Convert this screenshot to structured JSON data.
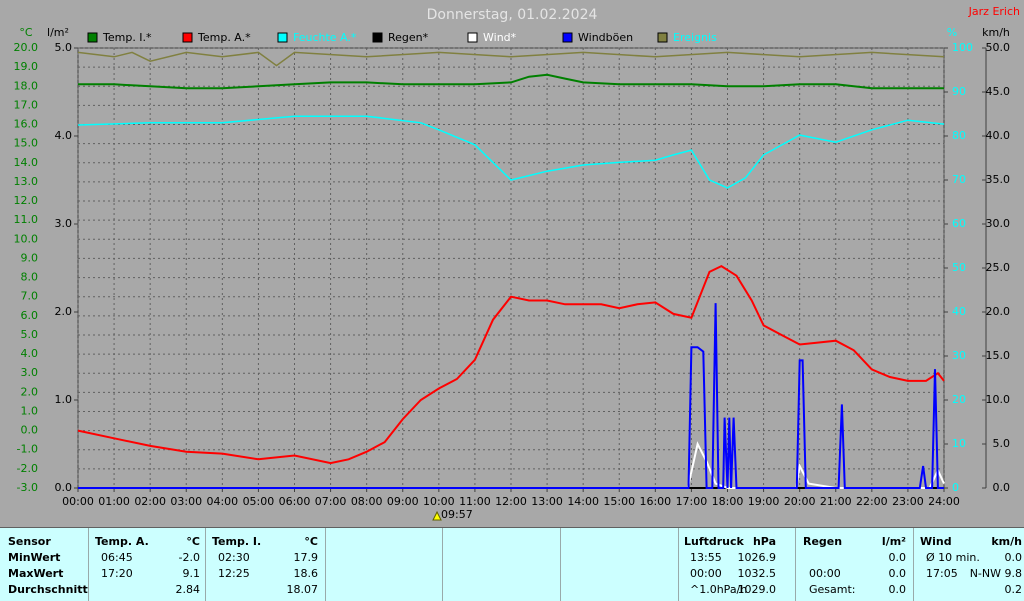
{
  "chart_data": {
    "type": "line",
    "title": "Donnerstag, 01.02.2024",
    "station": "Jarz Erich",
    "y_label": "°C",
    "rain_label": "l/m²",
    "y2_label": "%",
    "y3_label": "km/h",
    "xlim": [
      0,
      24
    ],
    "xticks": [
      {
        "value": 0,
        "label": "00:00"
      },
      {
        "value": 1,
        "label": "01:00"
      },
      {
        "value": 2,
        "label": "02:00"
      },
      {
        "value": 3,
        "label": "03:00"
      },
      {
        "value": 4,
        "label": "04:00"
      },
      {
        "value": 5,
        "label": "05:00"
      },
      {
        "value": 6,
        "label": "06:00"
      },
      {
        "value": 7,
        "label": "07:00"
      },
      {
        "value": 8,
        "label": "08:00"
      },
      {
        "value": 9,
        "label": "09:00"
      },
      {
        "value": 10,
        "label": "10:00"
      },
      {
        "value": 11,
        "label": "11:00"
      },
      {
        "value": 12,
        "label": "12:00"
      },
      {
        "value": 13,
        "label": "13:00"
      },
      {
        "value": 14,
        "label": "14:00"
      },
      {
        "value": 15,
        "label": "15:00"
      },
      {
        "value": 16,
        "label": "16:00"
      },
      {
        "value": 17,
        "label": "17:00"
      },
      {
        "value": 18,
        "label": "18:00"
      },
      {
        "value": 19,
        "label": "19:00"
      },
      {
        "value": 20,
        "label": "20:00"
      },
      {
        "value": 21,
        "label": "21:00"
      },
      {
        "value": 22,
        "label": "22:00"
      },
      {
        "value": 23,
        "label": "23:00"
      },
      {
        "value": 24,
        "label": "24:00"
      }
    ],
    "ylim": [
      -3,
      20
    ],
    "yticks": [
      {
        "value": -3,
        "label": "-3.0"
      },
      {
        "value": -2,
        "label": "-2.0"
      },
      {
        "value": -1,
        "label": "-1.0"
      },
      {
        "value": 0,
        "label": "0.0"
      },
      {
        "value": 1,
        "label": "1.0"
      },
      {
        "value": 2,
        "label": "2.0"
      },
      {
        "value": 3,
        "label": "3.0"
      },
      {
        "value": 4,
        "label": "4.0"
      },
      {
        "value": 5,
        "label": "5.0"
      },
      {
        "value": 6,
        "label": "6.0"
      },
      {
        "value": 7,
        "label": "7.0"
      },
      {
        "value": 8,
        "label": "8.0"
      },
      {
        "value": 9,
        "label": "9.0"
      },
      {
        "value": 10,
        "label": "10.0"
      },
      {
        "value": 11,
        "label": "11.0"
      },
      {
        "value": 12,
        "label": "12.0"
      },
      {
        "value": 13,
        "label": "13.0"
      },
      {
        "value": 14,
        "label": "14.0"
      },
      {
        "value": 15,
        "label": "15.0"
      },
      {
        "value": 16,
        "label": "16.0"
      },
      {
        "value": 17,
        "label": "17.0"
      },
      {
        "value": 18,
        "label": "18.0"
      },
      {
        "value": 19,
        "label": "19.0"
      },
      {
        "value": 20,
        "label": "20.0"
      }
    ],
    "rainlim": [
      0,
      5
    ],
    "rainticks": [
      {
        "value": 0,
        "label": "0.0"
      },
      {
        "value": 1,
        "label": "1.0"
      },
      {
        "value": 2,
        "label": "2.0"
      },
      {
        "value": 3,
        "label": "3.0"
      },
      {
        "value": 4,
        "label": "4.0"
      },
      {
        "value": 5,
        "label": "5.0"
      }
    ],
    "y2lim": [
      0,
      100
    ],
    "y2ticks": [
      0,
      10,
      20,
      30,
      40,
      50,
      60,
      70,
      80,
      90,
      100
    ],
    "y3lim": [
      0,
      50
    ],
    "y3ticks": [
      {
        "value": 0,
        "label": "0.0"
      },
      {
        "value": 5,
        "label": "5.0"
      },
      {
        "value": 10,
        "label": "10.0"
      },
      {
        "value": 15,
        "label": "15.0"
      },
      {
        "value": 20,
        "label": "20.0"
      },
      {
        "value": 25,
        "label": "25.0"
      },
      {
        "value": 30,
        "label": "30.0"
      },
      {
        "value": 35,
        "label": "35.0"
      },
      {
        "value": 40,
        "label": "40.0"
      },
      {
        "value": 45,
        "label": "45.0"
      },
      {
        "value": 50,
        "label": "50.0"
      }
    ],
    "grid": true,
    "annotations": [
      {
        "x": 9.95,
        "label": "09:57"
      }
    ],
    "series": [
      {
        "name": "Temp. I.*",
        "color": "#008000",
        "text_color": "#000000",
        "axis": "y",
        "x": [
          0,
          1,
          2,
          3,
          4,
          5,
          6,
          7,
          8,
          9,
          10,
          11,
          12,
          12.5,
          13,
          13.5,
          14,
          15,
          16,
          17,
          18,
          19,
          20,
          21,
          22,
          23,
          24
        ],
        "values": [
          18.1,
          18.1,
          18.0,
          17.9,
          17.9,
          18.0,
          18.1,
          18.2,
          18.2,
          18.1,
          18.1,
          18.1,
          18.2,
          18.5,
          18.6,
          18.4,
          18.2,
          18.1,
          18.1,
          18.1,
          18.0,
          18.0,
          18.1,
          18.1,
          17.9,
          17.9,
          17.9
        ]
      },
      {
        "name": "Temp. A.*",
        "color": "#ff0000",
        "text_color": "#000000",
        "axis": "y",
        "x": [
          0,
          1,
          2,
          3,
          4,
          5,
          6,
          7,
          7.5,
          8,
          8.5,
          9,
          9.5,
          10,
          10.5,
          11,
          11.5,
          12,
          12.5,
          13,
          13.5,
          14,
          14.5,
          15,
          15.5,
          16,
          16.5,
          17,
          17.5,
          17.83,
          18.25,
          18.67,
          19,
          19.5,
          20,
          20.5,
          21,
          21.5,
          22,
          22.5,
          23,
          23.5,
          23.83,
          24
        ],
        "values": [
          0.0,
          -0.4,
          -0.8,
          -1.1,
          -1.2,
          -1.5,
          -1.3,
          -1.7,
          -1.5,
          -1.1,
          -0.6,
          0.6,
          1.6,
          2.2,
          2.7,
          3.7,
          5.8,
          7.0,
          6.8,
          6.8,
          6.6,
          6.6,
          6.6,
          6.4,
          6.6,
          6.7,
          6.1,
          5.9,
          8.3,
          8.6,
          8.1,
          6.8,
          5.5,
          5.0,
          4.5,
          4.6,
          4.7,
          4.2,
          3.2,
          2.8,
          2.6,
          2.6,
          3.0,
          2.6
        ]
      },
      {
        "name": "Feuchte A.*",
        "color": "#00ffff",
        "text_color": "#00ffff",
        "axis": "y2",
        "x": [
          0,
          2,
          4,
          6,
          8,
          9.5,
          10,
          11,
          12,
          13,
          14,
          15,
          16,
          16.5,
          17,
          17.5,
          18,
          18.5,
          19,
          20,
          21,
          22,
          23,
          24
        ],
        "values": [
          82.5,
          83,
          83,
          84.5,
          84.5,
          83,
          81.4,
          78,
          70,
          72,
          73.4,
          74,
          74.5,
          75.7,
          76.8,
          70,
          68.2,
          70.5,
          75.7,
          80.2,
          78.6,
          81.4,
          83.6,
          82.7
        ]
      },
      {
        "name": "Regen*",
        "color": "#000000",
        "text_color": "#000000",
        "axis": "rain",
        "x": [
          0,
          24
        ],
        "values": [
          0,
          0
        ]
      },
      {
        "name": "Wind*",
        "color": "#ffffff",
        "text_color": "#ffffff",
        "axis": "y3",
        "x": [
          0,
          16.9,
          17.17,
          17.42,
          17.67,
          18,
          19.9,
          20,
          20.25,
          21,
          23.6,
          23.83,
          24
        ],
        "values": [
          0,
          0,
          5,
          3,
          0.5,
          0,
          0,
          2.5,
          0.5,
          0,
          0,
          2,
          0.5
        ]
      },
      {
        "name": "Windböen",
        "color": "#0000ff",
        "text_color": "#000000",
        "axis": "y3",
        "x": [
          0,
          16.92,
          17.0,
          17.17,
          17.33,
          17.42,
          17.58,
          17.67,
          17.75,
          17.88,
          17.92,
          18.0,
          18.05,
          18.1,
          18.17,
          18.25,
          18.33,
          19.92,
          20.0,
          20.08,
          20.17,
          21.08,
          21.17,
          21.25,
          23.33,
          23.42,
          23.5,
          23.67,
          23.75,
          23.83,
          24
        ],
        "values": [
          0,
          0,
          16,
          16,
          15.5,
          0,
          0,
          21,
          0,
          0,
          8,
          0,
          8,
          0,
          8,
          0,
          0,
          0,
          14.5,
          14.5,
          0,
          0,
          9.5,
          0,
          0,
          2.5,
          0,
          0,
          13.5,
          0,
          0
        ]
      },
      {
        "name": "Ereignis",
        "color": "#808040",
        "text_color": "#00ffff",
        "axis": "y2",
        "x": [
          0,
          1,
          1.5,
          2,
          3,
          4,
          5,
          5.5,
          6,
          8,
          10,
          12,
          14,
          16,
          18,
          20,
          22,
          24
        ],
        "values": [
          99,
          98,
          99,
          97,
          99,
          98,
          99,
          96,
          99,
          98,
          99,
          98,
          99,
          98,
          99,
          98,
          99,
          98
        ]
      }
    ]
  },
  "stats": {
    "sensor": {
      "title": "Sensor",
      "rows": [
        "MinWert",
        "MaxWert",
        "Durchschnitt"
      ]
    },
    "blocks": [
      {
        "title": "Temp. A.",
        "unit": "°C",
        "rows": [
          [
            "06:45",
            "-2.0"
          ],
          [
            "17:20",
            "9.1"
          ],
          [
            "2.84"
          ]
        ]
      },
      {
        "title": "Temp. I.",
        "unit": "°C",
        "rows": [
          [
            "02:30",
            "17.9"
          ],
          [
            "12:25",
            "18.6"
          ],
          [
            "18.07"
          ]
        ]
      },
      {
        "title": "Luftdruck",
        "unit": "hPa",
        "rows": [
          [
            "13:55",
            "1026.9"
          ],
          [
            "00:00",
            "1032.5"
          ],
          [
            "^1.0hPa/h",
            "1029.0"
          ]
        ]
      },
      {
        "title": "Regen",
        "unit": "l/m²",
        "rows": [
          [
            "0.0"
          ],
          [
            "00:00",
            "0.0"
          ],
          [
            "Gesamt:",
            "0.0"
          ]
        ]
      },
      {
        "title": "Wind",
        "unit": "km/h",
        "rows": [
          [
            "Ø 10 min.",
            "0.0"
          ],
          [
            "17:05",
            "N-NW 9.8"
          ],
          [
            "0.2"
          ]
        ]
      }
    ]
  }
}
